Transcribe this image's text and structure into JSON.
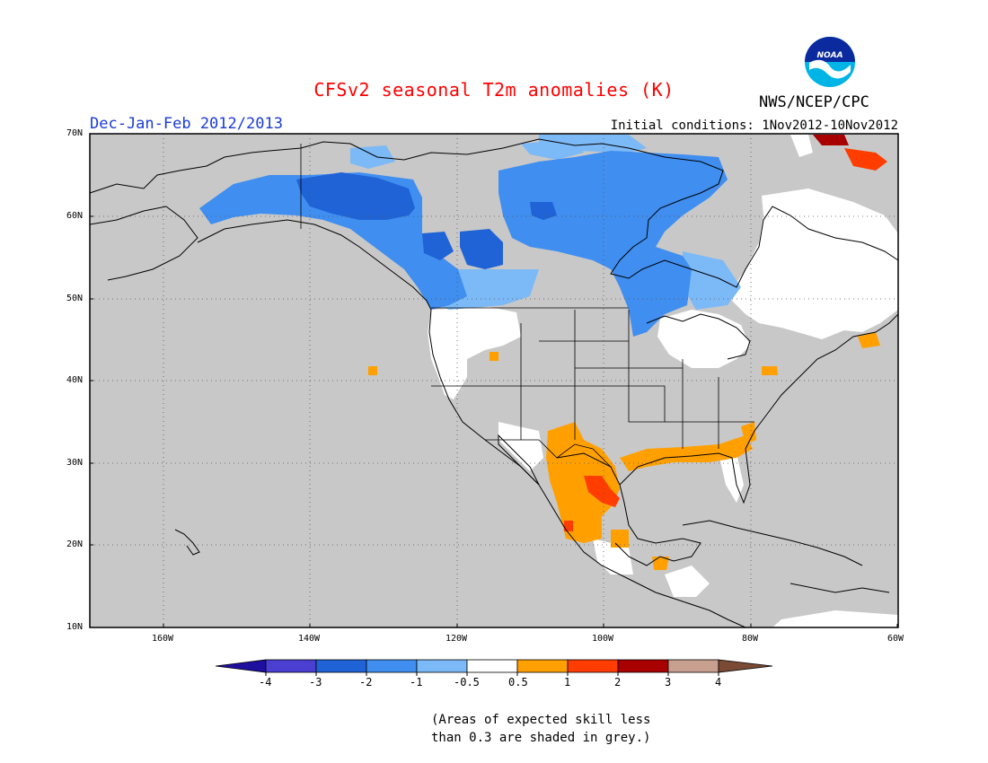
{
  "header": {
    "title": "CFSv2 seasonal T2m anomalies (K)",
    "season": "Dec-Jan-Feb 2012/2013",
    "initial_conditions": "Initial conditions: 1Nov2012-10Nov2012",
    "agency": "NWS/NCEP/CPC",
    "logo_text": "NOAA"
  },
  "map": {
    "lat_labels": [
      "70N",
      "60N",
      "50N",
      "40N",
      "30N",
      "20N",
      "10N"
    ],
    "lon_labels": [
      "160W",
      "140W",
      "120W",
      "100W",
      "80W",
      "60W"
    ],
    "lat_range": [
      10,
      70
    ],
    "lon_range": [
      -170,
      -60
    ],
    "gridlines": "dotted",
    "colors": {
      "no_skill": "#c8c8c8",
      "neutral": "#ffffff",
      "ocean": "#c8c8c8"
    }
  },
  "colorbar": {
    "labels": [
      "-4",
      "-3",
      "-2",
      "-1",
      "-0.5",
      "0.5",
      "1",
      "2",
      "3",
      "4"
    ],
    "colors": [
      "#1f0f9e",
      "#4a3fd1",
      "#1f63d6",
      "#3f8ef0",
      "#7cb9f7",
      "#ffffff",
      "#ffa000",
      "#ff3d00",
      "#a80000",
      "#c8a090",
      "#7a4a35"
    ]
  },
  "footnote": {
    "line1": "(Areas of expected skill less",
    "line2": "than 0.3 are shaded in grey.)"
  }
}
